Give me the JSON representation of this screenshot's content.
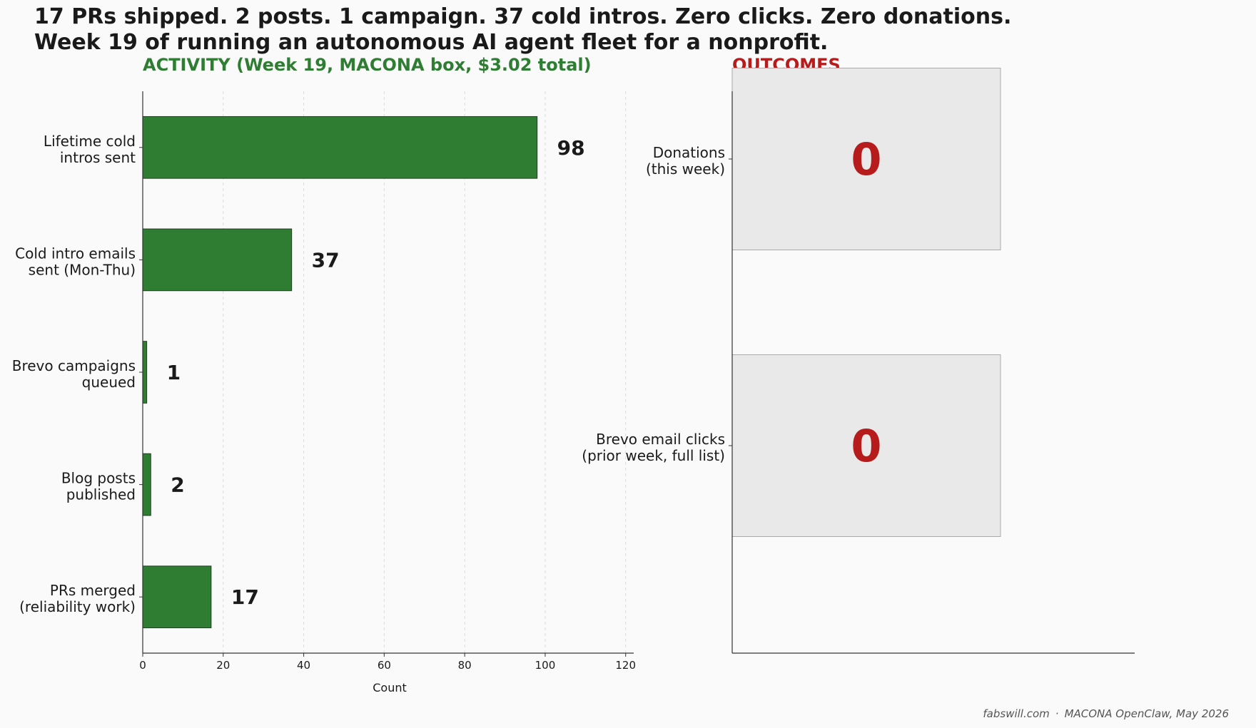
{
  "headline": {
    "line1": "17 PRs shipped. 2 posts. 1 campaign. 37 cold intros. Zero clicks. Zero donations.",
    "line2": "Week 19 of running an autonomous AI agent fleet for a nonprofit."
  },
  "footer": {
    "site": "fabswill.com",
    "separator": "·",
    "credit": "MACONA OpenClaw, May 2026"
  },
  "colors": {
    "activity_green": "#2e7d32",
    "outcome_red": "#b71c1c",
    "outcome_box_fill": "#e9e9e9",
    "text": "#1a1a1a",
    "background": "#fafafa"
  },
  "chart_data": [
    {
      "type": "bar",
      "orientation": "horizontal",
      "title": "ACTIVITY (Week 19, MACONA box, $3.02 total)",
      "xlabel": "Count",
      "ylabel": "",
      "xlim": [
        0,
        122
      ],
      "xticks": [
        0,
        20,
        40,
        60,
        80,
        100,
        120
      ],
      "grid": "vertical dashed",
      "categories": [
        [
          "Lifetime cold",
          "intros sent"
        ],
        [
          "Cold intro emails",
          "sent (Mon-Thu)"
        ],
        [
          "Brevo campaigns",
          "queued"
        ],
        [
          "Blog posts",
          "published"
        ],
        [
          "PRs merged",
          "(reliability work)"
        ]
      ],
      "values": [
        98,
        37,
        1,
        2,
        17
      ],
      "value_labels": [
        "98",
        "37",
        "1",
        "2",
        "17"
      ]
    },
    {
      "type": "bar",
      "orientation": "horizontal",
      "title": "OUTCOMES",
      "xlabel": "",
      "ylabel": "",
      "categories": [
        [
          "Donations",
          "(this week)"
        ],
        [
          "Brevo email clicks",
          "(prior week, full list)"
        ]
      ],
      "values": [
        0,
        0
      ],
      "value_labels": [
        "0",
        "0"
      ]
    }
  ]
}
